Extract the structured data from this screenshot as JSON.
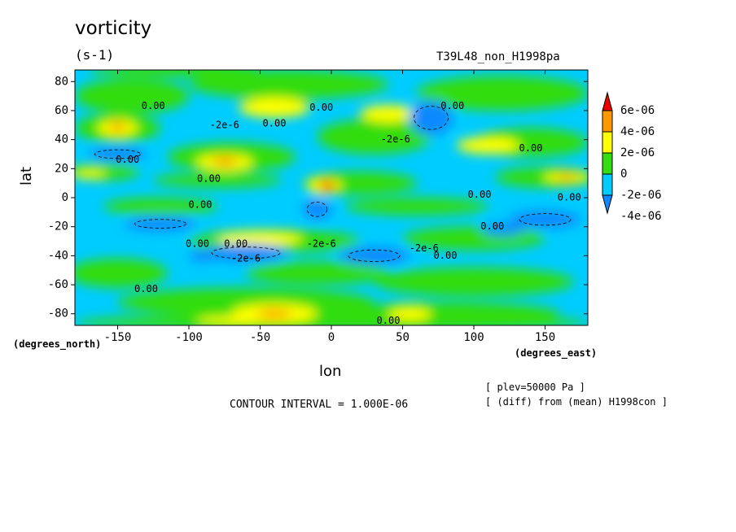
{
  "chart_data": {
    "type": "contour",
    "title": "vorticity",
    "units": "(s-1)",
    "run_name": "T39L48_non_H1998pa",
    "xlabel": "lon",
    "ylabel": "lat",
    "x_units": "(degrees_east)",
    "y_units": "(degrees_north)",
    "xlim": [
      -180,
      180
    ],
    "ylim": [
      -88,
      88
    ],
    "x_ticks": [
      -150,
      -100,
      -50,
      0,
      50,
      100,
      150
    ],
    "x_tick_labels": [
      "-150",
      "-100",
      "-50",
      "0",
      "50",
      "100",
      "150"
    ],
    "y_ticks": [
      -80,
      -60,
      -40,
      -20,
      0,
      20,
      40,
      60,
      80
    ],
    "y_tick_labels": [
      "-80",
      "-60",
      "-40",
      "-20",
      "0",
      "20",
      "40",
      "60",
      "80"
    ],
    "contour_interval_text": "CONTOUR INTERVAL = 1.000E-06",
    "level_text": "[ plev=50000 Pa ]",
    "diff_text": "[ (diff) from (mean) H1998con ]",
    "colorbar": {
      "levels": [
        -4e-06,
        -2e-06,
        0,
        2e-06,
        4e-06,
        6e-06
      ],
      "labels": [
        "6e-06",
        "4e-06",
        "2e-06",
        "0",
        "-2e-06",
        "-4e-06"
      ],
      "colors": [
        "#ee0000",
        "#ff9900",
        "#ffff00",
        "#33dd11",
        "#00ccff",
        "#1188ff"
      ]
    },
    "contour_labels": [
      {
        "text": "0.00",
        "lon": -125,
        "lat": 63
      },
      {
        "text": "0.00",
        "lon": -7,
        "lat": 62
      },
      {
        "text": "0.00",
        "lon": 85,
        "lat": 63
      },
      {
        "text": "-2e-6",
        "lon": -75,
        "lat": 50
      },
      {
        "text": "0.00",
        "lon": -40,
        "lat": 51
      },
      {
        "text": "-2e-6",
        "lon": 45,
        "lat": 40
      },
      {
        "text": "0.00",
        "lon": -143,
        "lat": 26
      },
      {
        "text": "0.00",
        "lon": -86,
        "lat": 13
      },
      {
        "text": "0.00",
        "lon": 140,
        "lat": 34
      },
      {
        "text": "0.00",
        "lon": -92,
        "lat": -5
      },
      {
        "text": "0.00",
        "lon": 104,
        "lat": 2
      },
      {
        "text": "0.00",
        "lon": 167,
        "lat": 0
      },
      {
        "text": "0.00",
        "lon": 113,
        "lat": -20
      },
      {
        "text": "0.00",
        "lon": -94,
        "lat": -32
      },
      {
        "text": "0.00",
        "lon": -67,
        "lat": -32
      },
      {
        "text": "-2e-6",
        "lon": -60,
        "lat": -42
      },
      {
        "text": "-2e-6",
        "lon": -7,
        "lat": -32
      },
      {
        "text": "-2e-6",
        "lon": 65,
        "lat": -35
      },
      {
        "text": "0.00",
        "lon": 80,
        "lat": -40
      },
      {
        "text": "0.00",
        "lon": -130,
        "lat": -63
      },
      {
        "text": "0.00",
        "lon": 40,
        "lat": -85
      }
    ]
  }
}
